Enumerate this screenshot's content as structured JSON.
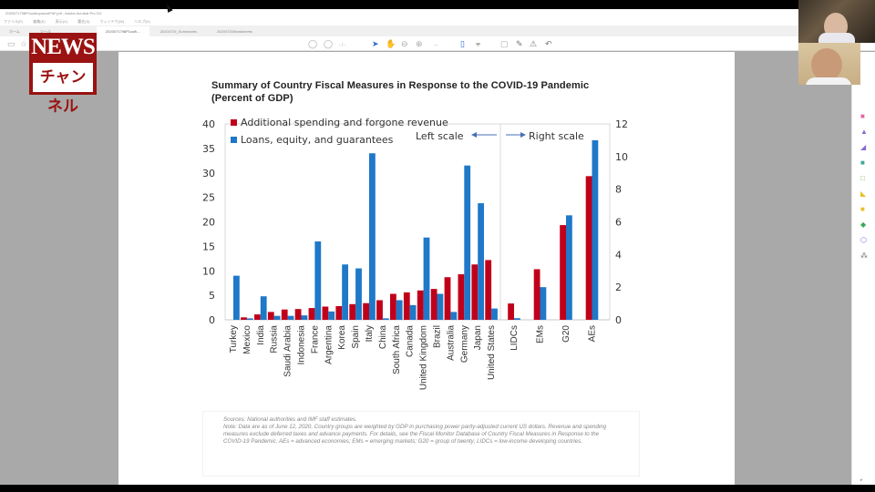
{
  "window": {
    "title": "2020071798P1cufkoyoucelPdF.pdf - Adobe Acrobat Pro DC",
    "menu": [
      "ファイル(F)",
      "編集(E)",
      "表示(V)",
      "署名(S)",
      "ウィンドウ(W)",
      "ヘルプ(H)"
    ],
    "tabs": [
      {
        "label": "ホーム",
        "active": false
      },
      {
        "label": "ツール",
        "active": false
      },
      {
        "label": "2020071798P1cufk...",
        "active": true
      },
      {
        "label": "20200725_Summaries",
        "active": false
      },
      {
        "label": "20200725Worksheets",
        "active": false
      }
    ],
    "toolbar": {
      "page_indicator": "- / -",
      "zoom_level": "---"
    }
  },
  "overlay": {
    "logo_top": "NEWS",
    "logo_bottom": "チャンネル"
  },
  "colors": {
    "red_series": "#c0001a",
    "blue_series": "#1f78c8",
    "logo": "#9a1212"
  },
  "chart_data": {
    "type": "bar",
    "title": "Summary of Country Fiscal Measures in Response to the COVID-19 Pandemic",
    "subtitle": "(Percent of GDP)",
    "legend": [
      "Additional spending and forgone revenue",
      "Loans, equity, and guarantees"
    ],
    "legend_position": "top-left",
    "annotations": [
      "Left scale",
      "Right scale"
    ],
    "left_panel": {
      "categories": [
        "Turkey",
        "Mexico",
        "India",
        "Russia",
        "Saudi Arabia",
        "Indonesia",
        "France",
        "Argentina",
        "Korea",
        "Spain",
        "Italy",
        "China",
        "South Africa",
        "Canada",
        "United Kingdom",
        "Brazil",
        "Australia",
        "Germany",
        "Japan",
        "United States"
      ],
      "series": [
        {
          "name": "Additional spending and forgone revenue",
          "values": [
            0,
            0.5,
            1.1,
            1.6,
            2.1,
            2.2,
            2.4,
            2.7,
            2.8,
            3.2,
            3.4,
            4.0,
            5.3,
            5.6,
            6.0,
            6.3,
            8.7,
            9.3,
            11.3,
            12.2
          ]
        },
        {
          "name": "Loans, equity, and guarantees",
          "values": [
            9.0,
            0.3,
            4.8,
            0.8,
            0.8,
            0.9,
            16.0,
            1.7,
            11.3,
            10.5,
            34.0,
            0.3,
            4.0,
            3.0,
            16.8,
            5.3,
            1.6,
            31.5,
            23.8,
            2.3
          ]
        }
      ],
      "ylim": [
        0,
        40
      ],
      "yticks": [
        0,
        5,
        10,
        15,
        20,
        25,
        30,
        35,
        40
      ]
    },
    "right_panel": {
      "categories": [
        "LIDCs",
        "EMs",
        "G20",
        "AEs"
      ],
      "series": [
        {
          "name": "Additional spending and forgone revenue",
          "values": [
            1.0,
            3.1,
            5.8,
            8.8
          ]
        },
        {
          "name": "Loans, equity, and guarantees",
          "values": [
            0.1,
            2.0,
            6.4,
            11.0
          ]
        }
      ],
      "ylim": [
        0,
        12
      ],
      "yticks": [
        0,
        2,
        4,
        6,
        8,
        10,
        12
      ]
    },
    "xlabel": "",
    "ylabel": "",
    "grid": false
  },
  "notes": {
    "sources": "Sources: National authorities and IMF staff estimates.",
    "note": "Note: Data are as of June 12, 2020. Country groups are weighted by GDP in purchasing power parity-adjusted current US dollars. Revenue and spending measures exclude deferred taxes and advance payments. For details, see the Fiscal Monitor Database of Country Fiscal Measures in Response to the COVID-19 Pandemic. AEs = advanced economies; EMs = emerging markets; G20 = group of twenty; LIDCs = low-income developing countries."
  }
}
